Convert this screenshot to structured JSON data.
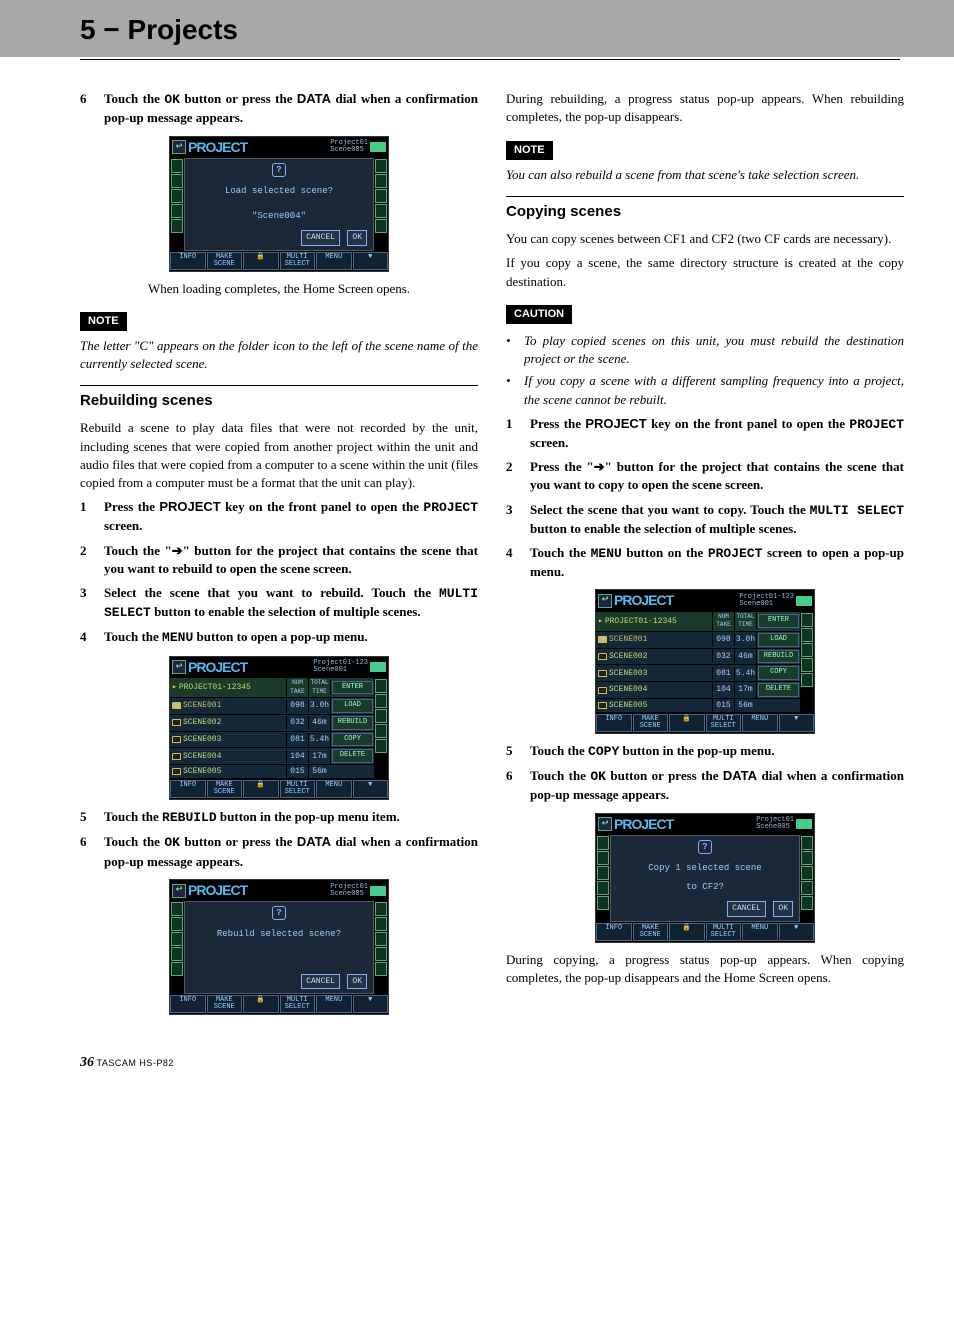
{
  "chapter_title": "5 − Projects",
  "page_number": "36",
  "model": "TASCAM  HS-P82",
  "labels": {
    "note": "NOTE",
    "caution": "CAUTION"
  },
  "left": {
    "step6": {
      "num": "6",
      "pre": "Touch the ",
      "btn": "OK",
      "mid": " button or press the ",
      "dial": "DATA",
      "post": " dial when a confirmation pop-up message appears."
    },
    "after_load": "When loading completes, the Home Screen opens.",
    "note1": "The letter \"C\" appears on the folder icon to the left of the scene name of the currently selected scene.",
    "rebuild_title": "Rebuilding scenes",
    "rebuild_intro": "Rebuild a scene to play data files that were not recorded by the unit, including scenes that were copied from another project within the unit and audio files that were copied from a computer to a scene within the unit (files copied from a computer must be a format that the unit can play).",
    "rsteps": [
      {
        "num": "1",
        "pre": "Press the ",
        "key": "PROJECT",
        "mid": " key on the front panel to open the ",
        "mono": "PROJECT",
        "post": " screen."
      },
      {
        "num": "2",
        "pre": "Touch the \"",
        "arrow": "➔",
        "mid": "\" button for the project that contains the scene that you want to rebuild to open the scene screen."
      },
      {
        "num": "3",
        "pre": "Select the scene that you want to rebuild. Touch the ",
        "mono": "MULTI SELECT",
        "post": " button to enable the selection of multiple scenes."
      },
      {
        "num": "4",
        "pre": "Touch the ",
        "mono": "MENU",
        "post": " button to open a pop-up menu."
      }
    ],
    "rstep5": {
      "num": "5",
      "pre": "Touch the ",
      "mono": "REBUILD",
      "post": " button in the pop-up menu item."
    },
    "rstep6": {
      "num": "6",
      "pre": "Touch the ",
      "btn": "OK",
      "mid": " button or press the ",
      "dial": "DATA",
      "post": " dial when a confirmation pop-up message appears."
    }
  },
  "right": {
    "progress_rebuild": "During rebuilding, a progress status pop-up appears. When rebuilding completes, the pop-up disappears.",
    "note2": "You can also rebuild a scene from that scene's take selection screen.",
    "copy_title": "Copying scenes",
    "copy_intro": "You can copy scenes between CF1 and CF2 (two CF cards are necessary).",
    "copy_intro2": "If you copy a scene, the same directory structure is created at the copy destination.",
    "caution_items": [
      "To play copied scenes on this unit, you must rebuild the destination project or the scene.",
      "If you copy a scene with a different sampling frequency into a project, the scene cannot be rebuilt."
    ],
    "csteps": [
      {
        "num": "1",
        "pre": "Press the ",
        "key": "PROJECT",
        "mid": " key on the front panel to open the ",
        "mono": "PROJECT",
        "post": " screen."
      },
      {
        "num": "2",
        "pre": "Press the \"",
        "arrow": "➔",
        "mid": "\" button for the project that contains the scene that you want to copy to open the scene screen."
      },
      {
        "num": "3",
        "pre": "Select the scene that you want to copy. Touch the ",
        "mono": "MULTI SELECT",
        "post": " button to enable the selection of multiple scenes."
      },
      {
        "num": "4",
        "pre": "Touch the ",
        "mono": "MENU",
        "mid": " button on the ",
        "mono2": "PROJECT",
        "post": " screen to open a pop-up menu."
      }
    ],
    "cstep5": {
      "num": "5",
      "pre": "Touch the ",
      "mono": "COPY",
      "post": " button in the pop-up menu."
    },
    "cstep6": {
      "num": "6",
      "pre": "Touch the ",
      "btn": "OK",
      "mid": " button or press the ",
      "dial": "DATA",
      "post": " dial when a confirmation pop-up message appears."
    },
    "progress_copy": "During copying, a progress status pop-up appears. When copying completes, the pop-up disappears and the Home Screen opens."
  },
  "lcd": {
    "title": "PROJECT",
    "sub1_a": "Project01",
    "sub1_b": "Scene005",
    "sub2_a": "Project01-123",
    "sub2_b": "Scene001",
    "load_msg1": "Load selected scene?",
    "load_msg2": "\"Scene004\"",
    "rebuild_msg": "Rebuild selected scene?",
    "copy_msg1": "Copy 1 selected scene",
    "copy_msg2": "to CF2?",
    "cancel": "CANCEL",
    "ok": "OK",
    "info": "INFO",
    "make_scene": "MAKE\nSCENE",
    "multi_select": "MULTI\nSELECT",
    "menu": "MENU",
    "proj_row": "PROJECT01-12345",
    "num_take": "NUM\nTAKE",
    "total_time": "TOTAL\nTIME",
    "enter": "ENTER",
    "scenes": [
      {
        "name": "SCENE001",
        "a": "098",
        "b": "3.0h",
        "sel": true
      },
      {
        "name": "SCENE002",
        "a": "032",
        "b": "46m"
      },
      {
        "name": "SCENE003",
        "a": "081",
        "b": "5.4h"
      },
      {
        "name": "SCENE004",
        "a": "104",
        "b": "17m"
      },
      {
        "name": "SCENE005",
        "a": "015",
        "b": "56m"
      }
    ],
    "popup": [
      "LOAD",
      "REBUILD",
      "COPY",
      "DELETE"
    ]
  }
}
